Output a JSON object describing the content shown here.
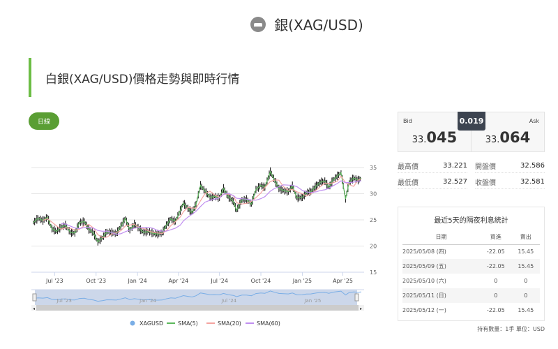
{
  "header": {
    "title": "銀(XAG/USD)",
    "icon": "silver-bar-icon"
  },
  "section_title": "白銀(XAG/USD)價格走勢與即時行情",
  "period_button": "日線",
  "quote": {
    "bid_label": "Bid",
    "ask_label": "Ask",
    "bid_int": "33.",
    "bid_dec": "045",
    "ask_int": "33.",
    "ask_dec": "064",
    "spread": "0.019"
  },
  "stats": [
    {
      "label": "最高價",
      "value": "33.221"
    },
    {
      "label": "開盤價",
      "value": "32.586"
    },
    {
      "label": "最低價",
      "value": "32.527"
    },
    {
      "label": "收盤價",
      "value": "32.581"
    }
  ],
  "swap_table": {
    "title": "最近5天的隔夜利息統計",
    "headers": [
      "日期",
      "買進",
      "賣出"
    ],
    "rows": [
      [
        "2025/05/08 (四)",
        "-22.05",
        "15.45"
      ],
      [
        "2025/05/09 (五)",
        "-22.05",
        "15.45"
      ],
      [
        "2025/05/10 (六)",
        "0",
        "0"
      ],
      [
        "2025/05/11 (日)",
        "0",
        "0"
      ],
      [
        "2025/05/12 (一)",
        "-22.05",
        "15.45"
      ]
    ]
  },
  "footer_note": "持有數量：1手 單位：USD",
  "colors": {
    "accent": "#6cbd45",
    "button": "#5a9e34",
    "sma5": "#5cb85c",
    "sma20": "#f4a3a0",
    "sma60": "#c08ef0",
    "price": "#222222",
    "navigator": "#7aaee6"
  },
  "chart_data": {
    "type": "line",
    "title": "",
    "y_ticks": [
      35,
      30,
      25,
      20,
      15
    ],
    "ylim": [
      15,
      35
    ],
    "x_ticks": [
      "Jul '23",
      "Oct '23",
      "Jan '24",
      "Apr '24",
      "Jul '24",
      "Oct '24",
      "Jan '25",
      "Apr '25"
    ],
    "navigator_ticks": [
      "Jul '23",
      "Jan '24",
      "Jul '24",
      "Jan '25"
    ],
    "legend": [
      "XAGUSD",
      "SMA(5)",
      "SMA(20)",
      "SMA(60)"
    ],
    "series": [
      {
        "name": "XAGUSD",
        "points": [
          [
            "2023-05-15",
            24.5
          ],
          [
            "2023-05-25",
            25.3
          ],
          [
            "2023-06-05",
            24.9
          ],
          [
            "2023-06-15",
            25.5
          ],
          [
            "2023-06-25",
            23.3
          ],
          [
            "2023-07-05",
            22.8
          ],
          [
            "2023-07-15",
            23.6
          ],
          [
            "2023-07-25",
            24.0
          ],
          [
            "2023-08-05",
            22.6
          ],
          [
            "2023-08-15",
            22.5
          ],
          [
            "2023-08-25",
            24.5
          ],
          [
            "2023-09-05",
            24.7
          ],
          [
            "2023-09-15",
            23.2
          ],
          [
            "2023-09-25",
            22.5
          ],
          [
            "2023-10-05",
            20.8
          ],
          [
            "2023-10-15",
            21.6
          ],
          [
            "2023-10-25",
            22.7
          ],
          [
            "2023-11-05",
            22.6
          ],
          [
            "2023-11-15",
            22.4
          ],
          [
            "2023-11-25",
            23.8
          ],
          [
            "2023-12-05",
            25.3
          ],
          [
            "2023-12-15",
            23.0
          ],
          [
            "2023-12-25",
            24.2
          ],
          [
            "2024-01-05",
            23.3
          ],
          [
            "2024-01-15",
            22.6
          ],
          [
            "2024-01-25",
            22.8
          ],
          [
            "2024-02-05",
            22.4
          ],
          [
            "2024-02-15",
            22.3
          ],
          [
            "2024-02-25",
            22.5
          ],
          [
            "2024-03-05",
            24.0
          ],
          [
            "2024-03-15",
            25.2
          ],
          [
            "2024-03-25",
            24.7
          ],
          [
            "2024-04-05",
            26.8
          ],
          [
            "2024-04-12",
            28.2
          ],
          [
            "2024-04-22",
            27.2
          ],
          [
            "2024-05-01",
            26.4
          ],
          [
            "2024-05-10",
            28.0
          ],
          [
            "2024-05-20",
            31.6
          ],
          [
            "2024-05-30",
            30.5
          ],
          [
            "2024-06-10",
            29.3
          ],
          [
            "2024-06-20",
            29.5
          ],
          [
            "2024-07-01",
            29.2
          ],
          [
            "2024-07-10",
            31.0
          ],
          [
            "2024-07-20",
            29.5
          ],
          [
            "2024-08-01",
            28.5
          ],
          [
            "2024-08-08",
            26.8
          ],
          [
            "2024-08-20",
            28.8
          ],
          [
            "2024-08-30",
            28.9
          ],
          [
            "2024-09-10",
            28.0
          ],
          [
            "2024-09-20",
            30.8
          ],
          [
            "2024-10-01",
            31.6
          ],
          [
            "2024-10-10",
            31.2
          ],
          [
            "2024-10-22",
            34.2
          ],
          [
            "2024-11-01",
            32.5
          ],
          [
            "2024-11-10",
            31.0
          ],
          [
            "2024-11-20",
            30.6
          ],
          [
            "2024-12-01",
            30.4
          ],
          [
            "2024-12-10",
            31.5
          ],
          [
            "2024-12-20",
            29.2
          ],
          [
            "2025-01-01",
            29.3
          ],
          [
            "2025-01-10",
            30.2
          ],
          [
            "2025-01-20",
            30.4
          ],
          [
            "2025-02-01",
            31.5
          ],
          [
            "2025-02-10",
            32.2
          ],
          [
            "2025-02-20",
            32.4
          ],
          [
            "2025-03-01",
            31.2
          ],
          [
            "2025-03-10",
            32.6
          ],
          [
            "2025-03-20",
            33.4
          ],
          [
            "2025-03-28",
            34.0
          ],
          [
            "2025-04-07",
            29.0
          ],
          [
            "2025-04-15",
            32.2
          ],
          [
            "2025-04-25",
            33.0
          ],
          [
            "2025-05-05",
            32.6
          ],
          [
            "2025-05-12",
            33.0
          ]
        ]
      }
    ]
  }
}
